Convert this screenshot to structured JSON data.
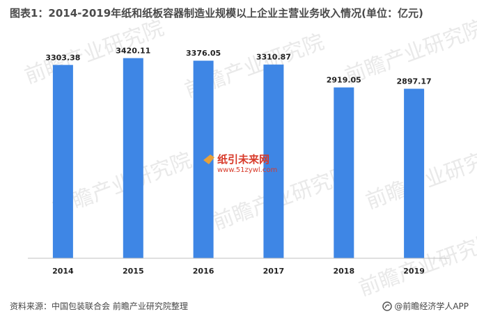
{
  "chart_data": {
    "type": "bar",
    "title": "图表1：2014-2019年纸和纸板容器制造业规模以上企业主营业务收入情况(单位：亿元)",
    "categories": [
      "2014",
      "2015",
      "2016",
      "2017",
      "2018",
      "2019"
    ],
    "values": [
      3303.38,
      3420.11,
      3376.05,
      3310.87,
      2919.05,
      2897.17
    ],
    "value_labels": [
      "3303.38",
      "3420.11",
      "3376.05",
      "3310.87",
      "2919.05",
      "2897.17"
    ],
    "unit": "亿元",
    "ylim": [
      0,
      3700
    ],
    "grid": false,
    "legend": "none",
    "bar_color": "#3e86e5"
  },
  "footer": {
    "source": "资料来源：中国包装联合会 前瞻产业研究院整理",
    "brand": "@前瞻经济学人APP"
  },
  "watermarks": {
    "brand": "前瞻产业研究院",
    "center_title": "纸引未来网",
    "center_url": "www.51zywl.com"
  },
  "colors": {
    "axis": "#bfbfbf",
    "brand_icon": "#555555"
  }
}
